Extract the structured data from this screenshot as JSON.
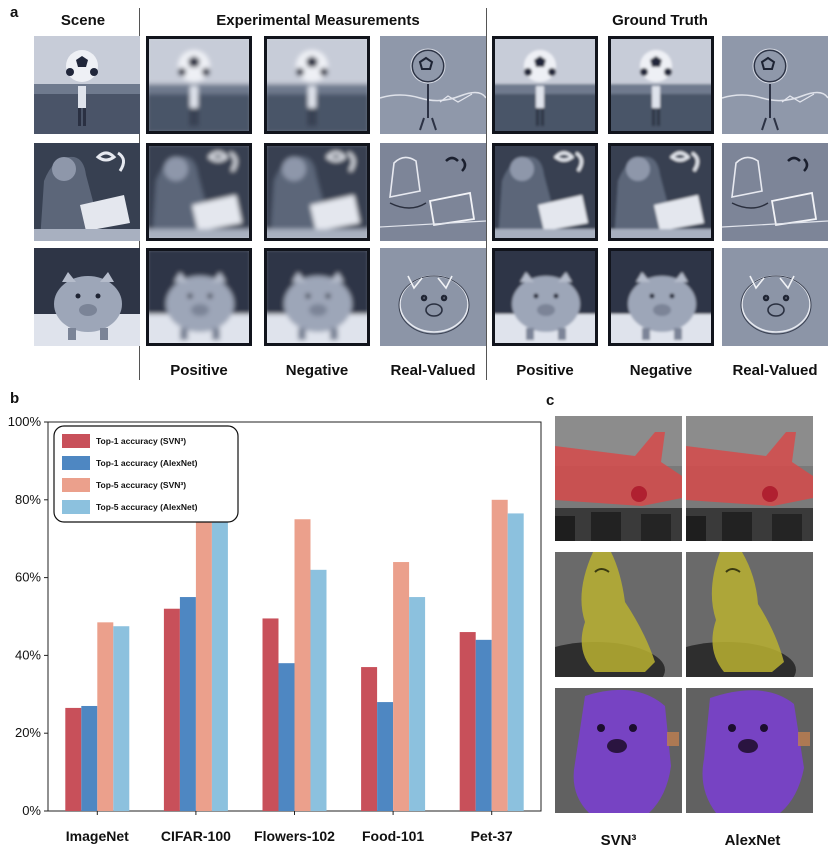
{
  "panel_a": {
    "label": "a",
    "scene_title": "Scene",
    "exp_title": "Experimental Measurements",
    "gt_title": "Ground Truth",
    "col_labels": [
      "Positive",
      "Negative",
      "Real-Valued",
      "Positive",
      "Negative",
      "Real-Valued"
    ]
  },
  "panel_b": {
    "label": "b"
  },
  "panel_c": {
    "label": "c",
    "col_labels": [
      "SVN³",
      "AlexNet"
    ]
  },
  "colors": {
    "top1_svn": "#c8505a",
    "top1_alex": "#4e87c2",
    "top5_svn": "#eba08c",
    "top5_alex": "#8cc1de",
    "tile_tint": "#5b6a8a",
    "seg_plane": "#d94848",
    "seg_bird": "#b8b030",
    "seg_dog": "#7a3fd0"
  },
  "chart_data": {
    "type": "bar",
    "categories": [
      "ImageNet",
      "CIFAR-100",
      "Flowers-102",
      "Food-101",
      "Pet-37"
    ],
    "series": [
      {
        "name": "Top-1 accuracy (SVN³)",
        "values": [
          26.5,
          52,
          49.5,
          37,
          46
        ]
      },
      {
        "name": "Top-1 accuracy (AlexNet)",
        "values": [
          27,
          55,
          38,
          28,
          44
        ]
      },
      {
        "name": "Top-5 accuracy (SVN³)",
        "values": [
          48.5,
          79,
          75,
          64,
          80
        ]
      },
      {
        "name": "Top-5 accuracy (AlexNet)",
        "values": [
          47.5,
          77.5,
          62,
          55,
          76.5
        ]
      }
    ],
    "ylim": [
      0,
      100
    ],
    "yticks": [
      "0%",
      "20%",
      "40%",
      "60%",
      "80%",
      "100%"
    ],
    "legend_position": "top-left",
    "grid": false
  }
}
